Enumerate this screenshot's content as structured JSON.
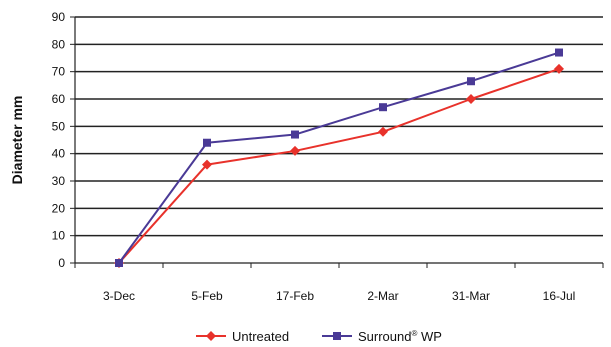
{
  "chart_data": {
    "type": "line",
    "ylabel": "Diameter mm",
    "xlabel": "",
    "ylim": [
      0,
      90
    ],
    "yticks": [
      0,
      10,
      20,
      30,
      40,
      50,
      60,
      70,
      80,
      90
    ],
    "categories": [
      "3-Dec",
      "5-Feb",
      "17-Feb",
      "2-Mar",
      "31-Mar",
      "16-Jul"
    ],
    "grid": true,
    "legend_position": "bottom",
    "series": [
      {
        "name": "Untreated",
        "marker": "diamond",
        "color": "#e8322b",
        "values": [
          0,
          36,
          41,
          48,
          60,
          71
        ]
      },
      {
        "name": "Surround",
        "name_superscript": "®",
        "name_suffix": " WP",
        "marker": "square",
        "color": "#4a3a96",
        "values": [
          0,
          44,
          47,
          57,
          66.5,
          77
        ]
      }
    ]
  }
}
